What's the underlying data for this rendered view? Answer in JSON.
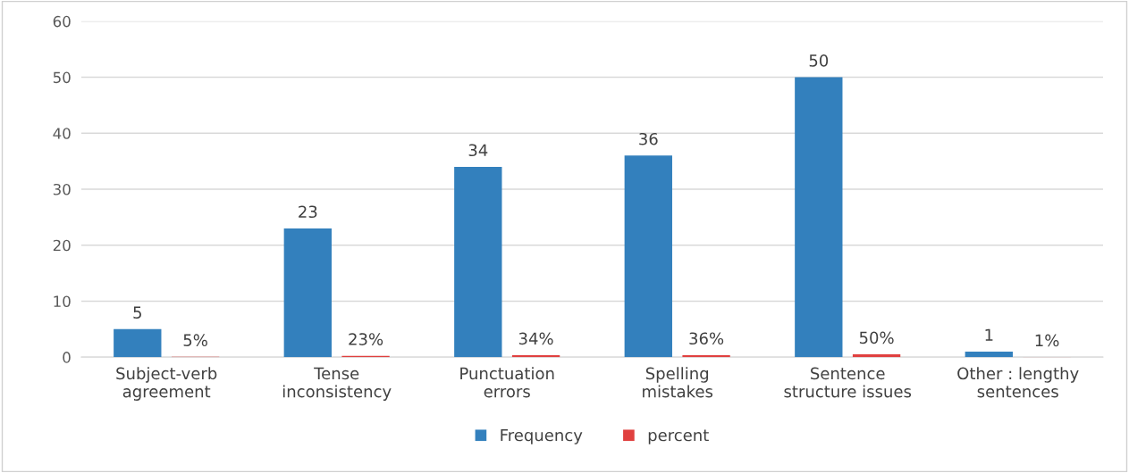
{
  "chart_data": {
    "type": "bar",
    "categories": [
      "Subject-verb\nagreement",
      "Tense\ninconsistency",
      "Punctuation\nerrors",
      "Spelling\nmistakes",
      "Sentence\nstructure issues",
      "Other : lengthy\nsentences"
    ],
    "series": [
      {
        "name": "Frequency",
        "color": "#3380bd",
        "values": [
          5,
          23,
          34,
          36,
          50,
          1
        ],
        "value_labels": [
          "5",
          "23",
          "34",
          "36",
          "50",
          "1"
        ]
      },
      {
        "name": "percent",
        "color": "#e0403f",
        "values": [
          0.05,
          0.23,
          0.34,
          0.36,
          0.5,
          0.01
        ],
        "value_labels": [
          "5%",
          "23%",
          "34%",
          "36%",
          "50%",
          "1%"
        ]
      }
    ],
    "ylim": [
      0,
      60
    ],
    "yticks": [
      0,
      10,
      20,
      30,
      40,
      50,
      60
    ],
    "grid": "y",
    "legend": "bottom"
  }
}
